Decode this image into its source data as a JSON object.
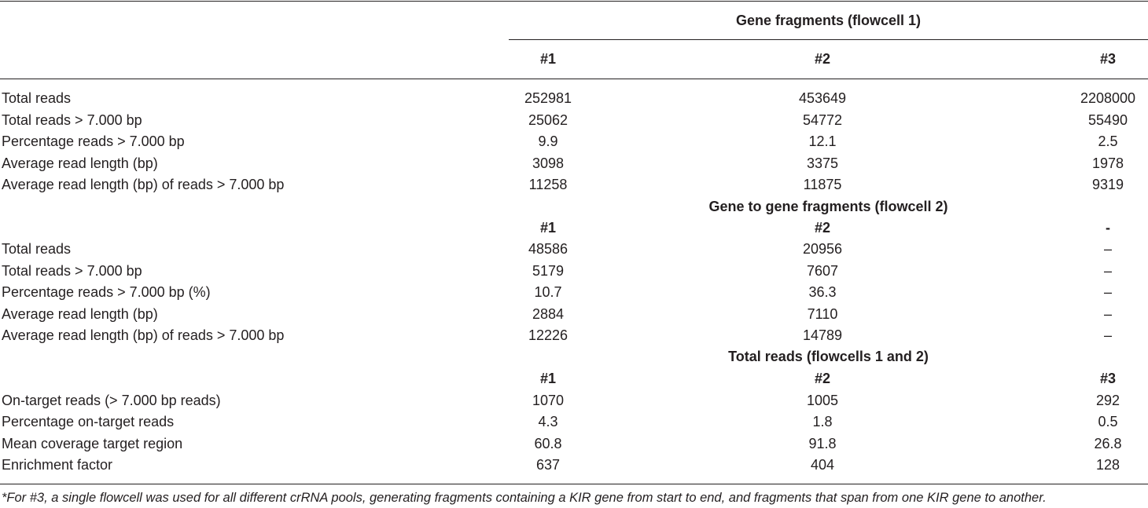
{
  "table": {
    "sections": [
      {
        "title": "Gene fragments (flowcell 1)",
        "columns": [
          "#1",
          "#2",
          "#3"
        ],
        "rows": [
          {
            "label": "Total reads",
            "values": [
              "252981",
              "453649",
              "2208000"
            ]
          },
          {
            "label": "Total reads > 7.000 bp",
            "values": [
              "25062",
              "54772",
              "55490"
            ]
          },
          {
            "label": "Percentage reads > 7.000 bp",
            "values": [
              "9.9",
              "12.1",
              "2.5"
            ]
          },
          {
            "label": "Average read length (bp)",
            "values": [
              "3098",
              "3375",
              "1978"
            ]
          },
          {
            "label": "Average read length (bp) of reads > 7.000 bp",
            "values": [
              "11258",
              "11875",
              "9319"
            ]
          }
        ]
      },
      {
        "title": "Gene to gene fragments (flowcell 2)",
        "columns": [
          "#1",
          "#2",
          "-"
        ],
        "rows": [
          {
            "label": "Total reads",
            "values": [
              "48586",
              "20956",
              "–"
            ]
          },
          {
            "label": "Total reads > 7.000 bp",
            "values": [
              "5179",
              "7607",
              "–"
            ]
          },
          {
            "label": "Percentage reads > 7.000 bp (%)",
            "values": [
              "10.7",
              "36.3",
              "–"
            ]
          },
          {
            "label": "Average read length (bp)",
            "values": [
              "2884",
              "7110",
              "–"
            ]
          },
          {
            "label": "Average read length (bp) of reads > 7.000 bp",
            "values": [
              "12226",
              "14789",
              "–"
            ]
          }
        ]
      },
      {
        "title": "Total reads (flowcells 1 and 2)",
        "columns": [
          "#1",
          "#2",
          "#3"
        ],
        "rows": [
          {
            "label": "On-target reads (> 7.000 bp reads)",
            "values": [
              "1070",
              "1005",
              "292"
            ]
          },
          {
            "label": "Percentage on-target reads",
            "values": [
              "4.3",
              "1.8",
              "0.5"
            ]
          },
          {
            "label": "Mean coverage target region",
            "values": [
              "60.8",
              "91.8",
              "26.8"
            ]
          },
          {
            "label": "Enrichment factor",
            "values": [
              "637",
              "404",
              "128"
            ]
          }
        ]
      }
    ],
    "footnote": "*For #3, a single flowcell was used for all different crRNA pools, generating fragments containing a KIR gene from start to end, and fragments that span from one KIR gene to another."
  }
}
